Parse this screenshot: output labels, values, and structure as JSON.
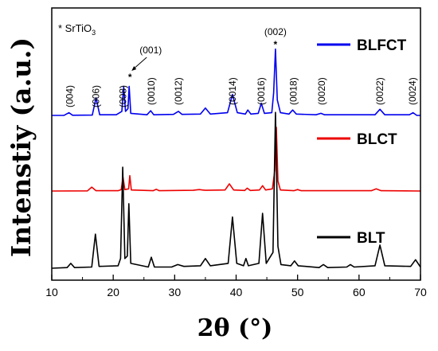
{
  "chart_data": {
    "type": "line",
    "xlabel": "2θ (°)",
    "ylabel": "Intenstiy (a.u.)",
    "xlim": [
      10,
      70
    ],
    "xticks": [
      10,
      20,
      30,
      40,
      50,
      60,
      70
    ],
    "grid": false,
    "y_ticks_shown": false,
    "note": "* SrTiO",
    "note_sub": "3",
    "series": [
      {
        "name": "BLFCT",
        "color": "#0000ee",
        "offset": 1.0,
        "baseline": 0.02,
        "points": [
          [
            10,
            0.02
          ],
          [
            12,
            0.021
          ],
          [
            12.8,
            0.06
          ],
          [
            13.4,
            0.022
          ],
          [
            16.6,
            0.025
          ],
          [
            17.2,
            0.28
          ],
          [
            17.8,
            0.03
          ],
          [
            20.5,
            0.03
          ],
          [
            21.4,
            0.08
          ],
          [
            21.7,
            0.45
          ],
          [
            22.0,
            0.08
          ],
          [
            22.4,
            0.12
          ],
          [
            22.6,
            0.45
          ],
          [
            22.85,
            0.05
          ],
          [
            25.5,
            0.03
          ],
          [
            26.1,
            0.09
          ],
          [
            26.6,
            0.03
          ],
          [
            29.8,
            0.035
          ],
          [
            30.6,
            0.08
          ],
          [
            31.2,
            0.035
          ],
          [
            34.2,
            0.04
          ],
          [
            35.0,
            0.13
          ],
          [
            35.8,
            0.04
          ],
          [
            38.6,
            0.06
          ],
          [
            39.4,
            0.33
          ],
          [
            40.2,
            0.06
          ],
          [
            41.5,
            0.04
          ],
          [
            41.9,
            0.1
          ],
          [
            42.4,
            0.04
          ],
          [
            43.6,
            0.05
          ],
          [
            44.1,
            0.2
          ],
          [
            44.6,
            0.05
          ],
          [
            45.8,
            0.06
          ],
          [
            46.1,
            0.35
          ],
          [
            46.4,
            1.0
          ],
          [
            46.7,
            0.25
          ],
          [
            47.2,
            0.06
          ],
          [
            48.6,
            0.04
          ],
          [
            49.2,
            0.1
          ],
          [
            49.8,
            0.04
          ],
          [
            53.0,
            0.03
          ],
          [
            53.8,
            0.05
          ],
          [
            54.4,
            0.03
          ],
          [
            62.6,
            0.03
          ],
          [
            63.4,
            0.11
          ],
          [
            64.2,
            0.03
          ],
          [
            68.2,
            0.03
          ],
          [
            68.8,
            0.06
          ],
          [
            69.4,
            0.02
          ],
          [
            70,
            0.02
          ]
        ]
      },
      {
        "name": "BLCT",
        "color": "#ee0000",
        "offset": 0.5,
        "baseline": 0.02,
        "points": [
          [
            10,
            0.02
          ],
          [
            15.8,
            0.025
          ],
          [
            16.5,
            0.13
          ],
          [
            17.2,
            0.03
          ],
          [
            20.8,
            0.03
          ],
          [
            21.3,
            0.06
          ],
          [
            21.6,
            0.4
          ],
          [
            21.9,
            0.06
          ],
          [
            22.5,
            0.08
          ],
          [
            22.7,
            0.45
          ],
          [
            22.95,
            0.05
          ],
          [
            26.5,
            0.03
          ],
          [
            27.0,
            0.07
          ],
          [
            27.5,
            0.03
          ],
          [
            33.0,
            0.04
          ],
          [
            34.0,
            0.06
          ],
          [
            35.0,
            0.04
          ],
          [
            38.2,
            0.05
          ],
          [
            38.9,
            0.22
          ],
          [
            39.6,
            0.05
          ],
          [
            41.4,
            0.035
          ],
          [
            41.8,
            0.1
          ],
          [
            42.3,
            0.035
          ],
          [
            43.8,
            0.05
          ],
          [
            44.3,
            0.17
          ],
          [
            44.8,
            0.05
          ],
          [
            45.9,
            0.08
          ],
          [
            46.3,
            0.6
          ],
          [
            46.55,
            1.8
          ],
          [
            46.8,
            0.3
          ],
          [
            47.2,
            0.05
          ],
          [
            49.4,
            0.03
          ],
          [
            50.0,
            0.06
          ],
          [
            50.6,
            0.03
          ],
          [
            62.0,
            0.03
          ],
          [
            62.8,
            0.08
          ],
          [
            63.6,
            0.03
          ],
          [
            70,
            0.02
          ]
        ]
      },
      {
        "name": "BLT",
        "color": "#000000",
        "offset": 0.0,
        "baseline": 0.02,
        "points": [
          [
            10,
            0.02
          ],
          [
            12.5,
            0.025
          ],
          [
            13.1,
            0.06
          ],
          [
            13.7,
            0.025
          ],
          [
            16.5,
            0.03
          ],
          [
            17.1,
            0.3
          ],
          [
            17.7,
            0.035
          ],
          [
            20.8,
            0.04
          ],
          [
            21.2,
            0.1
          ],
          [
            21.55,
            0.85
          ],
          [
            21.9,
            0.1
          ],
          [
            22.3,
            0.12
          ],
          [
            22.55,
            0.55
          ],
          [
            22.85,
            0.06
          ],
          [
            25.7,
            0.03
          ],
          [
            26.2,
            0.11
          ],
          [
            26.7,
            0.03
          ],
          [
            29.5,
            0.03
          ],
          [
            30.5,
            0.05
          ],
          [
            31.5,
            0.035
          ],
          [
            34.2,
            0.04
          ],
          [
            35.0,
            0.1
          ],
          [
            35.8,
            0.04
          ],
          [
            38.7,
            0.06
          ],
          [
            39.4,
            0.44
          ],
          [
            40.1,
            0.06
          ],
          [
            41.2,
            0.04
          ],
          [
            41.6,
            0.1
          ],
          [
            42.0,
            0.04
          ],
          [
            43.7,
            0.06
          ],
          [
            44.3,
            0.47
          ],
          [
            44.9,
            0.06
          ],
          [
            46.0,
            0.15
          ],
          [
            46.4,
            1.3
          ],
          [
            46.8,
            0.2
          ],
          [
            47.3,
            0.05
          ],
          [
            48.9,
            0.04
          ],
          [
            49.5,
            0.08
          ],
          [
            50.1,
            0.04
          ],
          [
            53.5,
            0.025
          ],
          [
            54.2,
            0.05
          ],
          [
            54.9,
            0.025
          ],
          [
            58.0,
            0.03
          ],
          [
            58.6,
            0.05
          ],
          [
            59.2,
            0.03
          ],
          [
            62.6,
            0.04
          ],
          [
            63.4,
            0.21
          ],
          [
            64.2,
            0.04
          ],
          [
            68.4,
            0.035
          ],
          [
            69.2,
            0.09
          ],
          [
            70,
            0.03
          ]
        ]
      }
    ],
    "peak_labels": [
      {
        "text": "(004)",
        "x": 12.9
      },
      {
        "text": "(006)",
        "x": 17.2
      },
      {
        "text": "(008)",
        "x": 21.6
      },
      {
        "text": "(0010)",
        "x": 26.2
      },
      {
        "text": "(0012)",
        "x": 30.6
      },
      {
        "text": "(0014)",
        "x": 39.4
      },
      {
        "text": "(0016)",
        "x": 44.1
      },
      {
        "text": "(0018)",
        "x": 49.3
      },
      {
        "text": "(0020)",
        "x": 53.9
      },
      {
        "text": "(0022)",
        "x": 63.4
      },
      {
        "text": "(0024)",
        "x": 68.7
      }
    ],
    "annotated_peaks": [
      {
        "text": "(001)",
        "x": 22.6,
        "marker": "*"
      },
      {
        "text": "(002)",
        "x": 46.4,
        "marker": "*"
      }
    ]
  }
}
